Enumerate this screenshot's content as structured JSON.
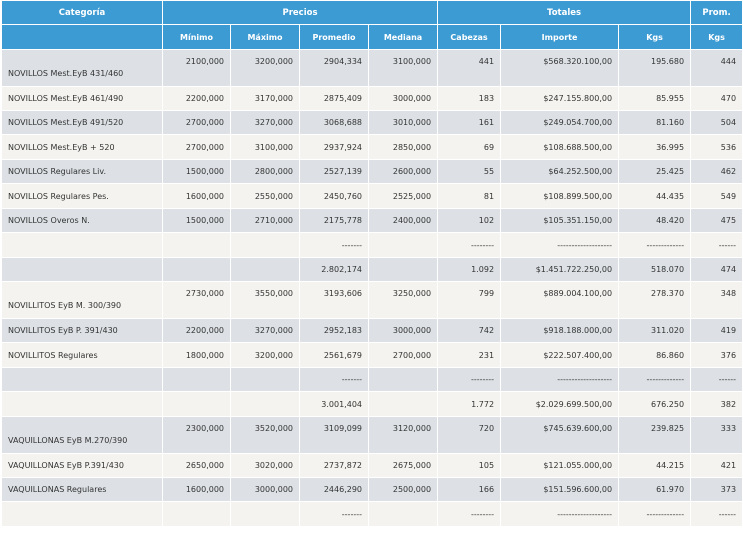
{
  "header": {
    "categoria": "Categoría",
    "precios": "Precios",
    "totales": "Totales",
    "prom": "Prom.",
    "minimo": "Mínimo",
    "maximo": "Máximo",
    "promedio": "Promedio",
    "mediana": "Mediana",
    "cabezas": "Cabezas",
    "importe": "Importe",
    "kgs": "Kgs",
    "kgs2": "Kgs"
  },
  "rows": [
    {
      "categoria": "NOVILLOS Mest.EyB 431/460",
      "minimo": "2100,000",
      "maximo": "3200,000",
      "promedio": "2904,334",
      "mediana": "3100,000",
      "cabezas": "441",
      "importe": "$568.320.100,00",
      "kgs": "195.680",
      "prom": "444"
    },
    {
      "categoria": "NOVILLOS Mest.EyB 461/490",
      "minimo": "2200,000",
      "maximo": "3170,000",
      "promedio": "2875,409",
      "mediana": "3000,000",
      "cabezas": "183",
      "importe": "$247.155.800,00",
      "kgs": "85.955",
      "prom": "470"
    },
    {
      "categoria": "NOVILLOS Mest.EyB 491/520",
      "minimo": "2700,000",
      "maximo": "3270,000",
      "promedio": "3068,688",
      "mediana": "3010,000",
      "cabezas": "161",
      "importe": "$249.054.700,00",
      "kgs": "81.160",
      "prom": "504"
    },
    {
      "categoria": "NOVILLOS Mest.EyB + 520",
      "minimo": "2700,000",
      "maximo": "3100,000",
      "promedio": "2937,924",
      "mediana": "2850,000",
      "cabezas": "69",
      "importe": "$108.688.500,00",
      "kgs": "36.995",
      "prom": "536"
    },
    {
      "categoria": "NOVILLOS Regulares Liv.",
      "minimo": "1500,000",
      "maximo": "2800,000",
      "promedio": "2527,139",
      "mediana": "2600,000",
      "cabezas": "55",
      "importe": "$64.252.500,00",
      "kgs": "25.425",
      "prom": "462"
    },
    {
      "categoria": "NOVILLOS Regulares Pes.",
      "minimo": "1600,000",
      "maximo": "2550,000",
      "promedio": "2450,760",
      "mediana": "2525,000",
      "cabezas": "81",
      "importe": "$108.899.500,00",
      "kgs": "44.435",
      "prom": "549"
    },
    {
      "categoria": "NOVILLOS Overos N.",
      "minimo": "1500,000",
      "maximo": "2710,000",
      "promedio": "2175,778",
      "mediana": "2400,000",
      "cabezas": "102",
      "importe": "$105.351.150,00",
      "kgs": "48.420",
      "prom": "475"
    },
    {
      "categoria": "",
      "minimo": "",
      "maximo": "",
      "promedio": "-------",
      "mediana": "",
      "cabezas": "--------",
      "importe": "-------------------",
      "kgs": "-------------",
      "prom": "------"
    },
    {
      "categoria": "",
      "minimo": "",
      "maximo": "",
      "promedio": "2.802,174",
      "mediana": "",
      "cabezas": "1.092",
      "importe": "$1.451.722.250,00",
      "kgs": "518.070",
      "prom": "474"
    },
    {
      "categoria": "NOVILLITOS EyB M. 300/390",
      "minimo": "2730,000",
      "maximo": "3550,000",
      "promedio": "3193,606",
      "mediana": "3250,000",
      "cabezas": "799",
      "importe": "$889.004.100,00",
      "kgs": "278.370",
      "prom": "348"
    },
    {
      "categoria": "NOVILLITOS EyB P. 391/430",
      "minimo": "2200,000",
      "maximo": "3270,000",
      "promedio": "2952,183",
      "mediana": "3000,000",
      "cabezas": "742",
      "importe": "$918.188.000,00",
      "kgs": "311.020",
      "prom": "419"
    },
    {
      "categoria": "NOVILLITOS Regulares",
      "minimo": "1800,000",
      "maximo": "3200,000",
      "promedio": "2561,679",
      "mediana": "2700,000",
      "cabezas": "231",
      "importe": "$222.507.400,00",
      "kgs": "86.860",
      "prom": "376"
    },
    {
      "categoria": "",
      "minimo": "",
      "maximo": "",
      "promedio": "-------",
      "mediana": "",
      "cabezas": "--------",
      "importe": "-------------------",
      "kgs": "-------------",
      "prom": "------"
    },
    {
      "categoria": "",
      "minimo": "",
      "maximo": "",
      "promedio": "3.001,404",
      "mediana": "",
      "cabezas": "1.772",
      "importe": "$2.029.699.500,00",
      "kgs": "676.250",
      "prom": "382"
    },
    {
      "categoria": "VAQUILLONAS EyB M.270/390",
      "minimo": "2300,000",
      "maximo": "3520,000",
      "promedio": "3109,099",
      "mediana": "3120,000",
      "cabezas": "720",
      "importe": "$745.639.600,00",
      "kgs": "239.825",
      "prom": "333"
    },
    {
      "categoria": "VAQUILLONAS EyB P.391/430",
      "minimo": "2650,000",
      "maximo": "3020,000",
      "promedio": "2737,872",
      "mediana": "2675,000",
      "cabezas": "105",
      "importe": "$121.055.000,00",
      "kgs": "44.215",
      "prom": "421"
    },
    {
      "categoria": "VAQUILLONAS Regulares",
      "minimo": "1600,000",
      "maximo": "3000,000",
      "promedio": "2446,290",
      "mediana": "2500,000",
      "cabezas": "166",
      "importe": "$151.596.600,00",
      "kgs": "61.970",
      "prom": "373"
    },
    {
      "categoria": "",
      "minimo": "",
      "maximo": "",
      "promedio": "-------",
      "mediana": "",
      "cabezas": "--------",
      "importe": "-------------------",
      "kgs": "-------------",
      "prom": "------"
    }
  ]
}
